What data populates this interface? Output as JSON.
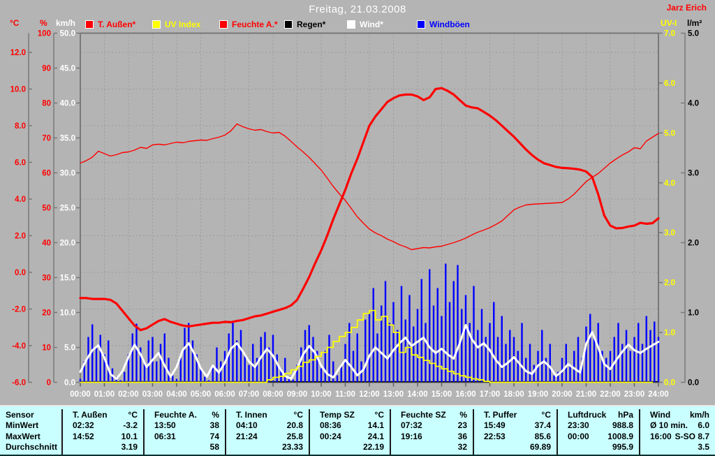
{
  "header": {
    "author": "Jarz Erich"
  },
  "legend": [
    {
      "label": "T. Außen*",
      "color": "#ff0000",
      "text_color": "#ff0000"
    },
    {
      "label": "UV Index",
      "color": "#ffff00",
      "text_color": "#ffff00"
    },
    {
      "label": "Feuchte A.*",
      "color": "#ff0000",
      "text_color": "#ff0000"
    },
    {
      "label": "Regen*",
      "color": "#000000",
      "text_color": "#000000"
    },
    {
      "label": "Wind*",
      "color": "#ffffff",
      "text_color": "#ffffff"
    },
    {
      "label": "Windböen",
      "color": "#0000ff",
      "text_color": "#0000ff"
    }
  ],
  "chart_data": {
    "type": "line",
    "title": "Freitag, 21.03.2008",
    "grid": "dashed",
    "x_range_hours": [
      0,
      24
    ],
    "x_labels": [
      "00:00",
      "01:00",
      "02:00",
      "03:00",
      "04:00",
      "05:00",
      "06:00",
      "07:00",
      "08:00",
      "09:00",
      "10:00",
      "11:00",
      "12:00",
      "13:00",
      "14:00",
      "15:00",
      "16:00",
      "17:00",
      "18:00",
      "19:00",
      "20:00",
      "21:00",
      "22:00",
      "23:00",
      "24:00"
    ],
    "axes": {
      "temp_c": {
        "unit": "°C",
        "color": "#ff0000",
        "range": [
          -6,
          13
        ],
        "ticks": [
          "12.0",
          "10.0",
          "8.0",
          "6.0",
          "4.0",
          "2.0",
          "0.0",
          "-2.0",
          "-4.0",
          "-6.0"
        ]
      },
      "humidity_pct": {
        "unit": "%",
        "color": "#ff0000",
        "range": [
          0,
          100
        ],
        "ticks": [
          "100",
          "90",
          "80",
          "70",
          "60",
          "50",
          "40",
          "30",
          "20",
          "10",
          "0"
        ]
      },
      "wind_kmh": {
        "unit": "km/h",
        "color": "#ffffff",
        "range": [
          0,
          50
        ],
        "ticks": [
          "50.0",
          "45.0",
          "40.0",
          "35.0",
          "30.0",
          "25.0",
          "20.0",
          "15.0",
          "10.0",
          "5.0",
          "0.0"
        ]
      },
      "uv_index": {
        "unit": "UV-I",
        "color": "#ffff00",
        "range": [
          0,
          7
        ],
        "ticks": [
          "7.0",
          "6.0",
          "5.0",
          "4.0",
          "3.0",
          "2.0",
          "1.0",
          "0.0"
        ]
      },
      "rain_lm2": {
        "unit": "l/m²",
        "color": "#000000",
        "range": [
          0,
          5
        ],
        "ticks": [
          "5.0",
          "4.0",
          "3.0",
          "2.0",
          "1.0",
          "0.0"
        ]
      }
    },
    "series": [
      {
        "name": "Regen",
        "axis": "l/m²",
        "color": "#000000",
        "width": 1.6,
        "render": "baseline",
        "interval_min": 1440,
        "values": [
          0,
          0
        ]
      },
      {
        "name": "Windböen",
        "axis": "km/h",
        "color": "#0000ff",
        "width": 2.4,
        "render": "bars",
        "interval_min": 10,
        "values": [
          0.5,
          3,
          6.5,
          8.3,
          5,
          6.8,
          4,
          6,
          2,
          0.8,
          0.3,
          1.5,
          4,
          7,
          8.4,
          5,
          3,
          6,
          6.5,
          3,
          5.5,
          7,
          3.5,
          1,
          0.5,
          3.5,
          7.8,
          8.5,
          6,
          4,
          2,
          0.8,
          0.3,
          2.5,
          5,
          3,
          4.5,
          7,
          8.6,
          6,
          7.5,
          4,
          2.5,
          5.5,
          3.5,
          6.5,
          7.2,
          5,
          6.8,
          4,
          2,
          3.5,
          0.8,
          0.4,
          2.5,
          5,
          7.5,
          8.2,
          6.5,
          4.5,
          2,
          4.5,
          6.8,
          3,
          1,
          2.5,
          5.5,
          8.5,
          4.5,
          7,
          3,
          9,
          10,
          13.5,
          7,
          11,
          14.5,
          8.5,
          11.5,
          7.5,
          13.8,
          9,
          12.5,
          8,
          10.5,
          14.8,
          8.5,
          16.2,
          11,
          13.5,
          9.5,
          17,
          11.5,
          14.5,
          16.8,
          10.5,
          12.5,
          8.5,
          13.8,
          7.5,
          10.5,
          6.5,
          8.5,
          11.5,
          6.5,
          9.5,
          5.5,
          7.5,
          6.5,
          4.5,
          8.5,
          3.5,
          5.5,
          2.5,
          4.5,
          7.5,
          3.5,
          5.5,
          1,
          1.5,
          3.5,
          5.5,
          2.5,
          4.5,
          6.5,
          3.5,
          8,
          9.8,
          6.5,
          8.5,
          4.5,
          3.5,
          4.5,
          6.5,
          8.5,
          5.5,
          7.5,
          4.5,
          6.5,
          8.5,
          5.5,
          9.5,
          7.5,
          8.7,
          6.5
        ]
      },
      {
        "name": "Wind",
        "axis": "km/h",
        "color": "#ffffff",
        "width": 3,
        "render": "line",
        "interval_min": 15,
        "values": [
          1.5,
          3.2,
          4.6,
          5.3,
          3.5,
          1.2,
          0.5,
          1.6,
          3.6,
          5.4,
          4.0,
          2.2,
          3.2,
          4.2,
          2.4,
          0.8,
          2.2,
          4.6,
          5.6,
          4.0,
          2.0,
          0.8,
          2.4,
          1.4,
          2.8,
          4.8,
          5.6,
          4.4,
          3.0,
          2.2,
          3.6,
          4.8,
          3.8,
          2.2,
          0.9,
          0.5,
          2.0,
          4.0,
          5.2,
          4.2,
          2.4,
          1.2,
          0.7,
          2.0,
          3.2,
          2.2,
          1.0,
          1.8,
          3.8,
          5.0,
          4.2,
          3.4,
          4.6,
          5.6,
          6.4,
          5.2,
          5.8,
          6.4,
          5.0,
          4.2,
          4.8,
          4.0,
          3.4,
          5.6,
          8.2,
          6.2,
          5.0,
          5.6,
          4.6,
          3.2,
          2.2,
          2.8,
          3.6,
          2.6,
          1.6,
          1.2,
          2.4,
          3.0,
          2.2,
          0.9,
          1.6,
          2.6,
          2.0,
          1.4,
          5.5,
          7.2,
          5.0,
          2.6,
          1.9,
          3.2,
          4.4,
          5.4,
          4.6,
          4.2,
          4.8,
          5.3,
          5.8
        ]
      },
      {
        "name": "UV Index",
        "axis": "UV-I",
        "color": "#ffff00",
        "width": 1.8,
        "render": "steps",
        "interval_min": 15,
        "values": [
          0,
          0,
          0,
          0,
          0,
          0,
          0,
          0,
          0,
          0,
          0,
          0,
          0,
          0,
          0,
          0,
          0,
          0,
          0,
          0,
          0,
          0,
          0,
          0,
          0,
          0,
          0,
          0,
          0,
          0,
          0,
          0.05,
          0.1,
          0.12,
          0.18,
          0.25,
          0.32,
          0.4,
          0.45,
          0.52,
          0.6,
          0.7,
          0.82,
          0.92,
          1.0,
          1.1,
          1.25,
          1.38,
          1.44,
          1.25,
          1.32,
          1.15,
          1.0,
          0.6,
          0.7,
          0.55,
          0.5,
          0.44,
          0.38,
          0.32,
          0.27,
          0.22,
          0.17,
          0.13,
          0.1,
          0.07,
          0.05,
          0.02,
          0,
          0,
          0,
          0,
          0,
          0,
          0,
          0,
          0,
          0,
          0,
          0,
          0,
          0,
          0,
          0,
          0,
          0,
          0,
          0,
          0,
          0,
          0,
          0,
          0,
          0,
          0,
          0
        ]
      },
      {
        "name": "Feuchte A.",
        "axis": "%",
        "color": "#ff0000",
        "width": 1.4,
        "render": "line",
        "interval_min": 15,
        "values": [
          62.8,
          63.5,
          64.5,
          66.2,
          65.5,
          64.8,
          65.2,
          65.8,
          66.0,
          66.5,
          67.3,
          67.0,
          68.0,
          68.2,
          68.0,
          68.4,
          68.8,
          68.6,
          69.0,
          69.2,
          69.4,
          69.3,
          69.8,
          70.2,
          70.8,
          72.0,
          74.0,
          73.2,
          72.6,
          72.2,
          72.4,
          71.8,
          71.4,
          71.6,
          70.5,
          69.0,
          67.4,
          66.0,
          64.4,
          62.6,
          60.8,
          58.5,
          56.1,
          54.0,
          52.1,
          49.8,
          47.4,
          45.6,
          43.9,
          42.8,
          42.0,
          41.0,
          40.3,
          39.4,
          38.8,
          38.0,
          38.3,
          38.6,
          38.5,
          38.8,
          39.0,
          39.5,
          40.0,
          40.6,
          41.3,
          42.2,
          43.0,
          43.6,
          44.3,
          45.2,
          46.2,
          47.8,
          49.4,
          50.2,
          50.8,
          51.0,
          51.1,
          51.2,
          51.3,
          51.4,
          51.5,
          52.5,
          53.9,
          55.7,
          57.5,
          58.7,
          59.8,
          61.3,
          62.8,
          64.0,
          65.1,
          66.0,
          67.2,
          66.9,
          69.1,
          70.2,
          71.3
        ]
      },
      {
        "name": "T. Außen",
        "axis": "°C",
        "color": "#ff0000",
        "width": 3.2,
        "render": "line",
        "interval_min": 15,
        "values": [
          -1.4,
          -1.4,
          -1.45,
          -1.45,
          -1.45,
          -1.5,
          -1.7,
          -2.1,
          -2.5,
          -2.9,
          -3.15,
          -3.05,
          -2.85,
          -2.65,
          -2.55,
          -2.7,
          -2.8,
          -2.9,
          -2.95,
          -2.9,
          -2.85,
          -2.8,
          -2.75,
          -2.75,
          -2.7,
          -2.72,
          -2.65,
          -2.6,
          -2.5,
          -2.4,
          -2.35,
          -2.25,
          -2.15,
          -2.05,
          -1.95,
          -1.8,
          -1.5,
          -0.9,
          -0.25,
          0.5,
          1.2,
          2.0,
          2.9,
          3.7,
          4.5,
          5.4,
          6.2,
          7.1,
          8.0,
          8.5,
          8.9,
          9.3,
          9.5,
          9.65,
          9.7,
          9.7,
          9.6,
          9.4,
          9.55,
          10.0,
          10.05,
          9.9,
          9.7,
          9.4,
          9.1,
          9.0,
          8.95,
          8.75,
          8.55,
          8.3,
          8.0,
          7.7,
          7.4,
          7.05,
          6.7,
          6.4,
          6.15,
          5.95,
          5.85,
          5.75,
          5.7,
          5.68,
          5.65,
          5.6,
          5.5,
          5.2,
          4.25,
          3.1,
          2.55,
          2.4,
          2.42,
          2.5,
          2.55,
          2.7,
          2.65,
          2.68,
          2.95
        ]
      }
    ]
  },
  "table": {
    "corner_label": "Sensor",
    "row_labels": [
      "Sensor",
      "MinWert",
      "MaxWert",
      "Durchschnitt"
    ],
    "columns": [
      {
        "name": "T. Außen",
        "unit": "°C",
        "min_time": "02:32",
        "min": "-3.2",
        "max_time": "14:52",
        "max": "10.1",
        "avg": "3.19"
      },
      {
        "name": "Feuchte A.",
        "unit": "%",
        "min_time": "13:50",
        "min": "38",
        "max_time": "06:31",
        "max": "74",
        "avg": "58"
      },
      {
        "name": "T. Innen",
        "unit": "°C",
        "min_time": "04:10",
        "min": "20.8",
        "max_time": "21:24",
        "max": "25.8",
        "avg": "23.33"
      },
      {
        "name": "Temp SZ",
        "unit": "°C",
        "min_time": "08:36",
        "min": "14.1",
        "max_time": "00:24",
        "max": "24.1",
        "avg": "22.19"
      },
      {
        "name": "Feuchte SZ",
        "unit": "%",
        "min_time": "07:32",
        "min": "23",
        "max_time": "19:16",
        "max": "36",
        "avg": "32"
      },
      {
        "name": "T. Puffer",
        "unit": "°C",
        "min_time": "15:49",
        "min": "37.4",
        "max_time": "22:53",
        "max": "85.6",
        "avg": "69.89"
      },
      {
        "name": "Luftdruck",
        "unit": "hPa",
        "min_time": "23:30",
        "min": "988.8",
        "max_time": "00:00",
        "max": "1008.9",
        "avg": "995.9"
      },
      {
        "name": "Wind",
        "unit": "km/h",
        "min_time": "Ø 10 min.",
        "min": "6.0",
        "max_time": "16:00",
        "max": "S-SO 8.7",
        "avg": "3.5"
      }
    ]
  },
  "colors": {
    "background": "#b4b4b4",
    "plot_border": "#787878",
    "grid": "#9a9a9a",
    "table_background": "#c9ffff",
    "table_text": "#000000",
    "title_text": "#ffffff",
    "author_text": "#ff0000"
  }
}
